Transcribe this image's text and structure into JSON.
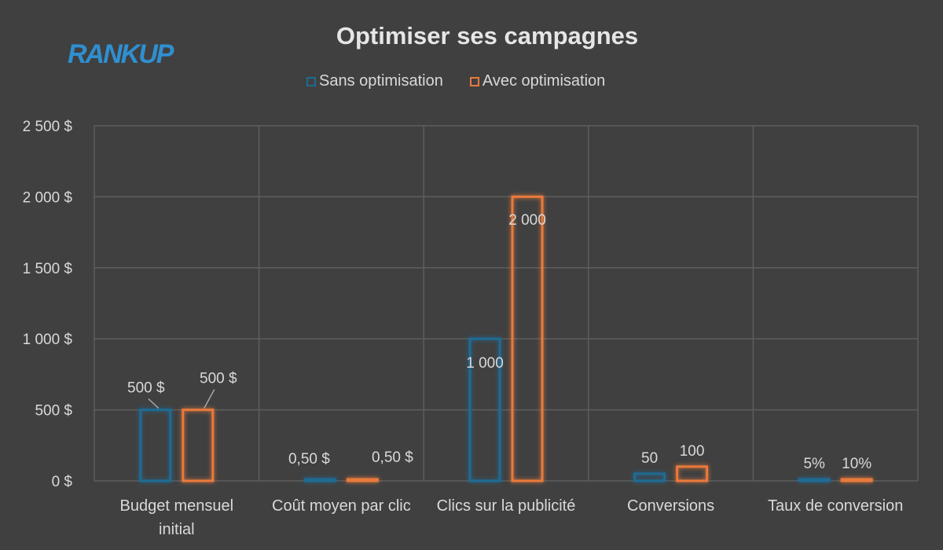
{
  "logo": {
    "text": "RANKUP",
    "color": "#2f8fd0"
  },
  "chart_data": {
    "type": "bar",
    "title": "Optimiser ses campagnes",
    "categories": [
      "Budget mensuel initial",
      "Coût moyen par clic",
      "Clics sur la publicité",
      "Conversions",
      "Taux de conversion"
    ],
    "category_lines": [
      [
        "Budget mensuel",
        "initial"
      ],
      [
        "Coût moyen par clic"
      ],
      [
        "Clics sur la publicité"
      ],
      [
        "Conversions"
      ],
      [
        "Taux de conversion"
      ]
    ],
    "series": [
      {
        "name": "Sans optimisation",
        "color": "#1f6b94",
        "values": [
          500,
          0.5,
          1000,
          50,
          0.05
        ],
        "labels": [
          "500 $",
          "0,50 $",
          "1 000",
          "50",
          "5%"
        ]
      },
      {
        "name": "Avec optimisation",
        "color": "#e87a3c",
        "values": [
          500,
          0.5,
          2000,
          100,
          0.1
        ],
        "labels": [
          "500 $",
          "0,50 $",
          "2 000",
          "100",
          "10%"
        ]
      }
    ],
    "ylim": [
      0,
      2500
    ],
    "yticks": [
      0,
      500,
      1000,
      1500,
      2000,
      2500
    ],
    "ytick_labels": [
      "0 $",
      "500 $",
      "1 000 $",
      "1 500 $",
      "2 000 $",
      "2 500 $"
    ],
    "grid": true,
    "legend": "top",
    "bar_style": "outlined"
  }
}
